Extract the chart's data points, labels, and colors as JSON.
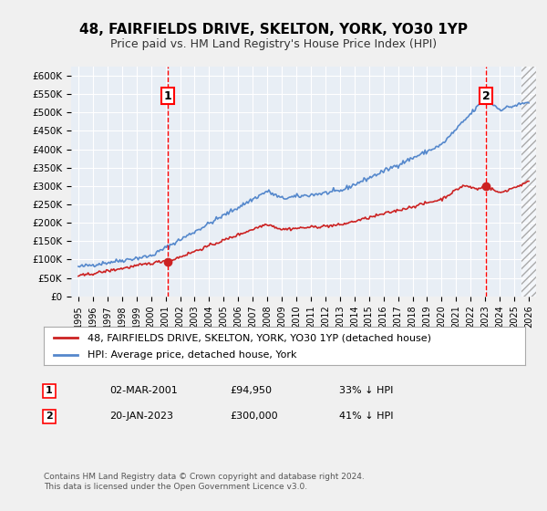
{
  "title": "48, FAIRFIELDS DRIVE, SKELTON, YORK, YO30 1YP",
  "subtitle": "Price paid vs. HM Land Registry's House Price Index (HPI)",
  "ylabel": "",
  "background_color": "#f0f0f0",
  "plot_bg_color": "#e8eef5",
  "hpi_color": "#5588cc",
  "price_color": "#cc2222",
  "sale1_date_num": 2001.17,
  "sale1_price": 94950,
  "sale1_label": "1",
  "sale2_date_num": 2023.05,
  "sale2_price": 300000,
  "sale2_label": "2",
  "ylim_max": 625000,
  "xlim_min": 1994.5,
  "xlim_max": 2026.5,
  "legend_line1": "48, FAIRFIELDS DRIVE, SKELTON, YORK, YO30 1YP (detached house)",
  "legend_line2": "HPI: Average price, detached house, York",
  "table_row1": [
    "1",
    "02-MAR-2001",
    "£94,950",
    "33% ↓ HPI"
  ],
  "table_row2": [
    "2",
    "20-JAN-2023",
    "£300,000",
    "41% ↓ HPI"
  ],
  "footer": "Contains HM Land Registry data © Crown copyright and database right 2024.\nThis data is licensed under the Open Government Licence v3.0."
}
